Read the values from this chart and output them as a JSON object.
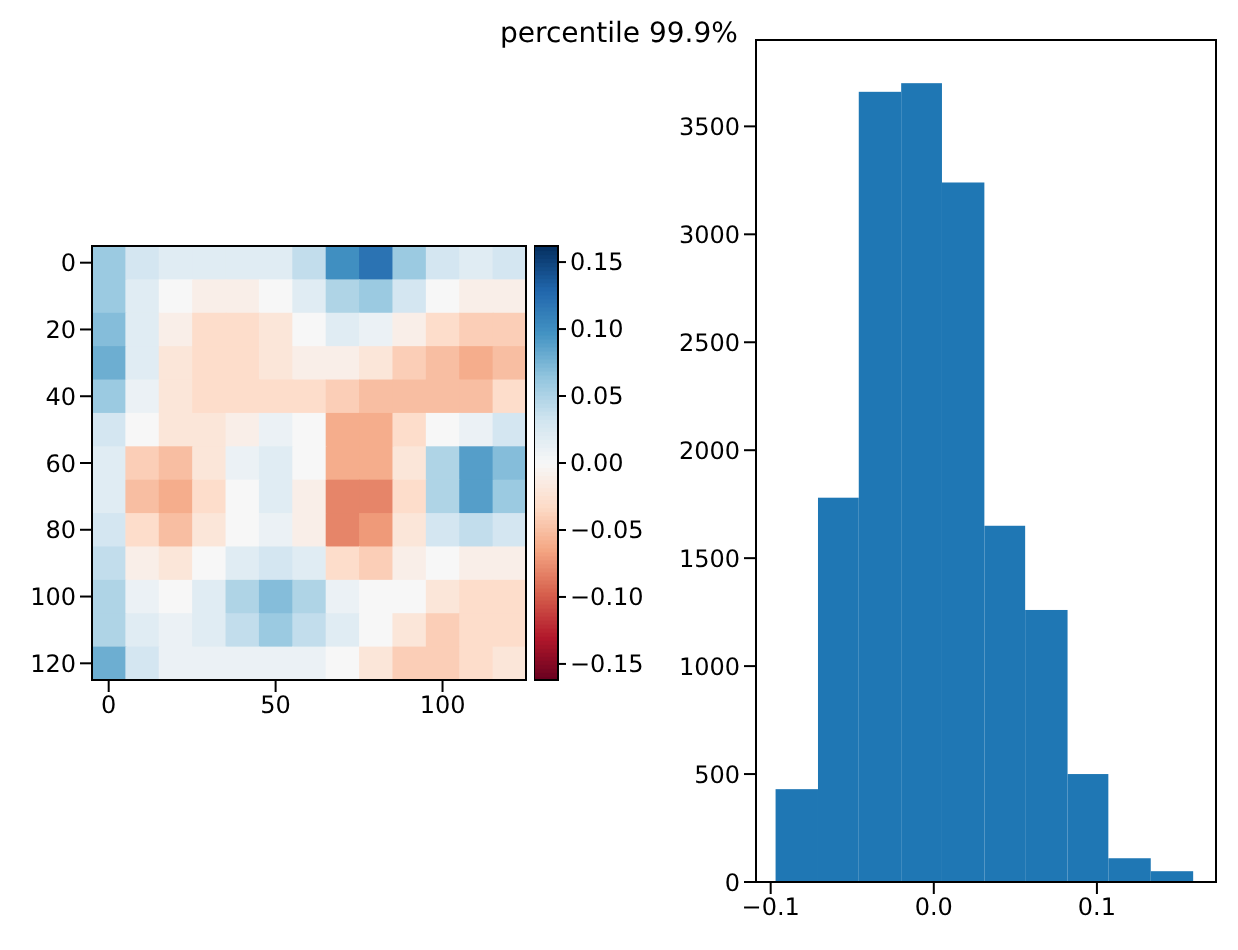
{
  "chart_data": [
    {
      "type": "heatmap",
      "categories": [
        "0",
        null,
        null,
        null,
        null,
        "50",
        null,
        null,
        null,
        null,
        "100",
        null,
        null
      ],
      "y_categories": [
        "0",
        null,
        "20",
        null,
        "40",
        null,
        "60",
        null,
        "80",
        null,
        "100",
        null,
        "120"
      ],
      "clim": [
        -0.162,
        0.162
      ],
      "cticks": [
        -0.15,
        {
          "value": -0.1,
          "label": "−0.10"
        },
        -0.05,
        {
          "value": 0,
          "label": "0.00"
        },
        0.05,
        {
          "value": 0.1,
          "label": "0.10"
        },
        0.15
      ],
      "cells": [
        [
          0.06,
          0.03,
          0.02,
          0.02,
          0.02,
          0.02,
          0.04,
          0.1,
          0.12,
          0.06,
          0.03,
          0.02,
          0.03
        ],
        [
          0.06,
          0.02,
          0.0,
          -0.01,
          -0.01,
          0.0,
          0.02,
          0.05,
          0.06,
          0.03,
          0.0,
          -0.01,
          -0.01
        ],
        [
          0.07,
          0.02,
          -0.01,
          -0.03,
          -0.03,
          -0.02,
          0.0,
          0.02,
          0.01,
          -0.01,
          -0.03,
          -0.04,
          -0.04
        ],
        [
          0.08,
          0.02,
          -0.02,
          -0.03,
          -0.03,
          -0.02,
          -0.01,
          -0.01,
          -0.02,
          -0.04,
          -0.05,
          -0.06,
          -0.05
        ],
        [
          0.06,
          0.01,
          -0.02,
          -0.03,
          -0.03,
          -0.03,
          -0.03,
          -0.04,
          -0.05,
          -0.05,
          -0.05,
          -0.05,
          -0.03
        ],
        [
          0.03,
          0.0,
          -0.02,
          -0.02,
          -0.01,
          0.01,
          0.0,
          -0.06,
          -0.06,
          -0.03,
          0.0,
          0.01,
          0.03
        ],
        [
          0.02,
          -0.04,
          -0.05,
          -0.02,
          0.01,
          0.02,
          0.0,
          -0.06,
          -0.06,
          -0.02,
          0.05,
          0.09,
          0.07
        ],
        [
          0.02,
          -0.05,
          -0.06,
          -0.03,
          0.0,
          0.02,
          -0.01,
          -0.08,
          -0.08,
          -0.03,
          0.05,
          0.09,
          0.06
        ],
        [
          0.03,
          -0.03,
          -0.05,
          -0.02,
          0.0,
          0.01,
          -0.01,
          -0.08,
          -0.07,
          -0.02,
          0.03,
          0.04,
          0.03
        ],
        [
          0.04,
          -0.01,
          -0.02,
          0.0,
          0.02,
          0.03,
          0.02,
          -0.03,
          -0.04,
          -0.01,
          0.0,
          -0.01,
          -0.01
        ],
        [
          0.05,
          0.01,
          0.0,
          0.02,
          0.05,
          0.07,
          0.05,
          0.01,
          0.0,
          0.0,
          -0.02,
          -0.03,
          -0.03
        ],
        [
          0.05,
          0.02,
          0.01,
          0.02,
          0.04,
          0.06,
          0.04,
          0.02,
          0.0,
          -0.02,
          -0.04,
          -0.03,
          -0.03
        ],
        [
          0.08,
          0.03,
          0.01,
          0.01,
          0.01,
          0.01,
          0.01,
          0.0,
          -0.02,
          -0.04,
          -0.04,
          -0.03,
          -0.02
        ]
      ]
    },
    {
      "type": "histogram",
      "title": "percentile 99.9%",
      "color": "#1f77b4",
      "bins": [
        -0.097,
        -0.071,
        -0.046,
        -0.02,
        0.005,
        0.031,
        0.056,
        0.082,
        0.107,
        0.133,
        0.159
      ],
      "values": [
        430,
        1780,
        3660,
        3700,
        3240,
        1650,
        1260,
        500,
        110,
        50
      ],
      "xlim": [
        -0.109,
        0.173
      ],
      "xticks": [
        -0.1,
        {
          "value": 0,
          "label": "0.0"
        },
        0.1
      ],
      "ylim": [
        0,
        3900
      ],
      "yticks": [
        0,
        500,
        1000,
        1500,
        2000,
        2500,
        3000,
        3500
      ]
    }
  ]
}
